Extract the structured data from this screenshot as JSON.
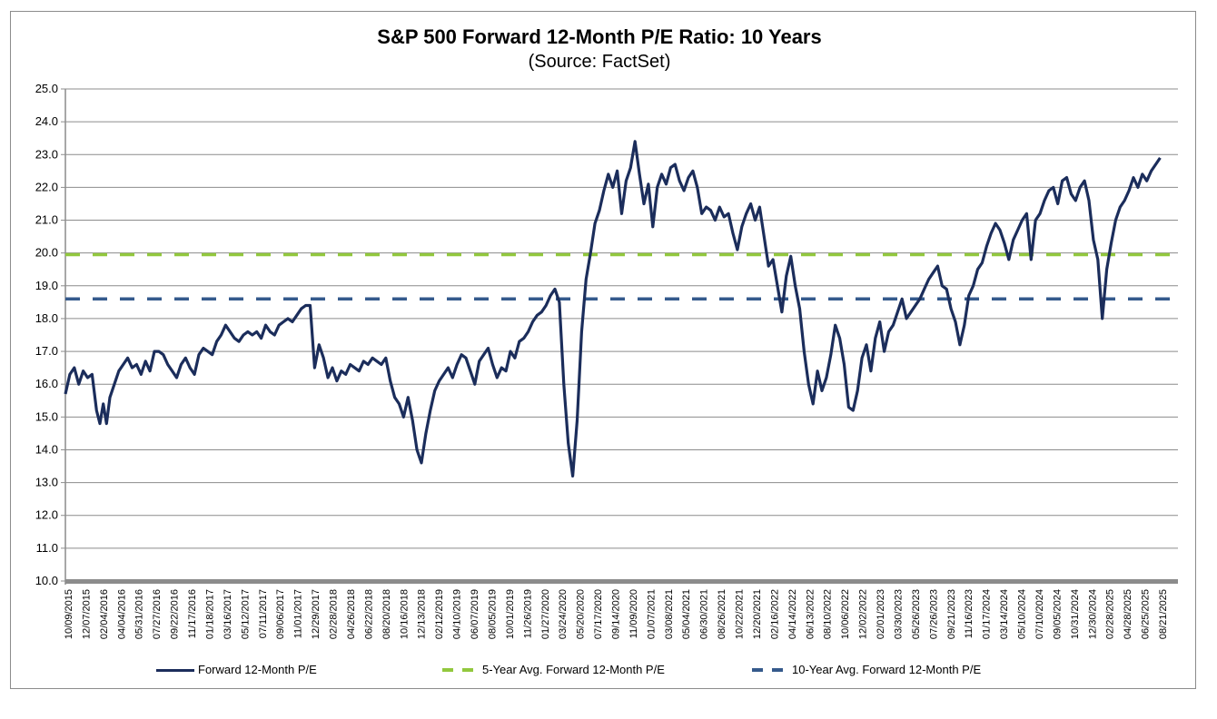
{
  "chart_data": {
    "type": "line",
    "title": "S&P 500 Forward 12-Month P/E Ratio: 10 Years",
    "subtitle": "(Source: FactSet)",
    "xlabel": "",
    "ylabel": "",
    "ylim": [
      10.0,
      25.0
    ],
    "yticks": [
      "10.0",
      "11.0",
      "12.0",
      "13.0",
      "14.0",
      "15.0",
      "16.0",
      "17.0",
      "18.0",
      "19.0",
      "20.0",
      "21.0",
      "22.0",
      "23.0",
      "24.0",
      "25.0"
    ],
    "grid": true,
    "legend_position": "bottom",
    "x_tick_labels": [
      "10/09/2015",
      "12/07/2015",
      "02/04/2016",
      "04/04/2016",
      "05/31/2016",
      "07/27/2016",
      "09/22/2016",
      "11/17/2016",
      "01/18/2017",
      "03/16/2017",
      "05/12/2017",
      "07/11/2017",
      "09/06/2017",
      "11/01/2017",
      "12/29/2017",
      "02/28/2018",
      "04/26/2018",
      "06/22/2018",
      "08/20/2018",
      "10/16/2018",
      "12/13/2018",
      "02/12/2019",
      "04/10/2019",
      "06/07/2019",
      "08/05/2019",
      "10/01/2019",
      "11/26/2019",
      "01/27/2020",
      "03/24/2020",
      "05/20/2020",
      "07/17/2020",
      "09/14/2020",
      "11/09/2020",
      "01/07/2021",
      "03/08/2021",
      "05/04/2021",
      "06/30/2021",
      "08/26/2021",
      "10/22/2021",
      "12/20/2021",
      "02/16/2022",
      "04/14/2022",
      "06/13/2022",
      "08/10/2022",
      "10/06/2022",
      "12/02/2022",
      "02/01/2023",
      "03/30/2023",
      "05/26/2023",
      "07/26/2023",
      "09/21/2023",
      "11/16/2023",
      "01/17/2024",
      "03/14/2024",
      "05/10/2024",
      "07/10/2024",
      "09/05/2024",
      "10/31/2024",
      "12/30/2024",
      "02/28/2025",
      "04/28/2025",
      "06/25/2025",
      "08/21/2025"
    ],
    "series": [
      {
        "name": "Forward 12-Month P/E",
        "color": "#1b2d5b",
        "style": "solid",
        "points_x_fraction": [
          0.0,
          0.004,
          0.008,
          0.012,
          0.016,
          0.02,
          0.024,
          0.028,
          0.031,
          0.034,
          0.037,
          0.04,
          0.044,
          0.048,
          0.052,
          0.056,
          0.06,
          0.064,
          0.068,
          0.072,
          0.076,
          0.08,
          0.084,
          0.088,
          0.092,
          0.096,
          0.1,
          0.104,
          0.108,
          0.112,
          0.116,
          0.12,
          0.124,
          0.128,
          0.132,
          0.136,
          0.14,
          0.144,
          0.148,
          0.152,
          0.156,
          0.16,
          0.164,
          0.168,
          0.172,
          0.176,
          0.18,
          0.184,
          0.188,
          0.192,
          0.196,
          0.2,
          0.204,
          0.208,
          0.212,
          0.216,
          0.22,
          0.224,
          0.228,
          0.232,
          0.236,
          0.24,
          0.244,
          0.248,
          0.252,
          0.256,
          0.26,
          0.264,
          0.268,
          0.272,
          0.276,
          0.28,
          0.284,
          0.288,
          0.292,
          0.296,
          0.3,
          0.304,
          0.308,
          0.312,
          0.316,
          0.32,
          0.324,
          0.328,
          0.332,
          0.336,
          0.34,
          0.344,
          0.348,
          0.352,
          0.356,
          0.36,
          0.364,
          0.368,
          0.372,
          0.376,
          0.38,
          0.384,
          0.388,
          0.392,
          0.396,
          0.4,
          0.404,
          0.408,
          0.412,
          0.416,
          0.42,
          0.424,
          0.428,
          0.432,
          0.436,
          0.44,
          0.444,
          0.448,
          0.452,
          0.456,
          0.46,
          0.464,
          0.468,
          0.472,
          0.476,
          0.48,
          0.484,
          0.488,
          0.492,
          0.496,
          0.5,
          0.504,
          0.508,
          0.512,
          0.516,
          0.52,
          0.524,
          0.528,
          0.532,
          0.536,
          0.54,
          0.544,
          0.548,
          0.552,
          0.556,
          0.56,
          0.564,
          0.568,
          0.572,
          0.576,
          0.58,
          0.584,
          0.588,
          0.592,
          0.596,
          0.6,
          0.604,
          0.608,
          0.612,
          0.616,
          0.62,
          0.624,
          0.628,
          0.632,
          0.636,
          0.64,
          0.644,
          0.648,
          0.652,
          0.656,
          0.66,
          0.664,
          0.668,
          0.672,
          0.676,
          0.68,
          0.684,
          0.688,
          0.692,
          0.696,
          0.7,
          0.704,
          0.708,
          0.712,
          0.716,
          0.72,
          0.724,
          0.728,
          0.732,
          0.736,
          0.74,
          0.744,
          0.748,
          0.752,
          0.756,
          0.76,
          0.764,
          0.768,
          0.772,
          0.776,
          0.78,
          0.784,
          0.788,
          0.792,
          0.796,
          0.8,
          0.804,
          0.808,
          0.812,
          0.816,
          0.82,
          0.824,
          0.828,
          0.832,
          0.836,
          0.84,
          0.844,
          0.848,
          0.852,
          0.856,
          0.86,
          0.864,
          0.868,
          0.872,
          0.876,
          0.88,
          0.884,
          0.888,
          0.892,
          0.896,
          0.9,
          0.904,
          0.908,
          0.912,
          0.916,
          0.92,
          0.924,
          0.928,
          0.932,
          0.936,
          0.94,
          0.944,
          0.948,
          0.952,
          0.956,
          0.96,
          0.964,
          0.968,
          0.972,
          0.976,
          0.98,
          0.984,
          0.988,
          0.992,
          0.996,
          1.0
        ],
        "values": [
          15.7,
          16.3,
          16.5,
          16.0,
          16.4,
          16.2,
          16.3,
          15.2,
          14.8,
          15.4,
          14.8,
          15.6,
          16.0,
          16.4,
          16.6,
          16.8,
          16.5,
          16.6,
          16.3,
          16.7,
          16.4,
          17.0,
          17.0,
          16.9,
          16.6,
          16.4,
          16.2,
          16.6,
          16.8,
          16.5,
          16.3,
          16.9,
          17.1,
          17.0,
          16.9,
          17.3,
          17.5,
          17.8,
          17.6,
          17.4,
          17.3,
          17.5,
          17.6,
          17.5,
          17.6,
          17.4,
          17.8,
          17.6,
          17.5,
          17.8,
          17.9,
          18.0,
          17.9,
          18.1,
          18.3,
          18.4,
          18.4,
          16.5,
          17.2,
          16.8,
          16.2,
          16.5,
          16.1,
          16.4,
          16.3,
          16.6,
          16.5,
          16.4,
          16.7,
          16.6,
          16.8,
          16.7,
          16.6,
          16.8,
          16.1,
          15.6,
          15.4,
          15.0,
          15.6,
          14.9,
          14.0,
          13.6,
          14.5,
          15.2,
          15.8,
          16.1,
          16.3,
          16.5,
          16.2,
          16.6,
          16.9,
          16.8,
          16.4,
          16.0,
          16.7,
          16.9,
          17.1,
          16.6,
          16.2,
          16.5,
          16.4,
          17.0,
          16.8,
          17.3,
          17.4,
          17.6,
          17.9,
          18.1,
          18.2,
          18.4,
          18.7,
          18.9,
          18.5,
          16.0,
          14.2,
          13.2,
          14.9,
          17.6,
          19.2,
          20.0,
          20.9,
          21.3,
          21.9,
          22.4,
          22.0,
          22.5,
          21.2,
          22.2,
          22.6,
          23.4,
          22.4,
          21.5,
          22.1,
          20.8,
          22.0,
          22.4,
          22.1,
          22.6,
          22.7,
          22.2,
          21.9,
          22.3,
          22.5,
          22.0,
          21.2,
          21.4,
          21.3,
          21.0,
          21.4,
          21.1,
          21.2,
          20.6,
          20.1,
          20.8,
          21.2,
          21.5,
          21.0,
          21.4,
          20.5,
          19.6,
          19.8,
          19.0,
          18.2,
          19.3,
          19.9,
          19.0,
          18.3,
          17.0,
          16.0,
          15.4,
          16.4,
          15.8,
          16.2,
          16.9,
          17.8,
          17.4,
          16.6,
          15.3,
          15.2,
          15.8,
          16.8,
          17.2,
          16.4,
          17.4,
          17.9,
          17.0,
          17.6,
          17.8,
          18.2,
          18.6,
          18.0,
          18.2,
          18.4,
          18.6,
          18.9,
          19.2,
          19.4,
          19.6,
          19.0,
          18.9,
          18.3,
          17.9,
          17.2,
          17.8,
          18.7,
          19.0,
          19.5,
          19.7,
          20.2,
          20.6,
          20.9,
          20.7,
          20.3,
          19.8,
          20.4,
          20.7,
          21.0,
          21.2,
          19.8,
          21.0,
          21.2,
          21.6,
          21.9,
          22.0,
          21.5,
          22.2,
          22.3,
          21.8,
          21.6,
          22.0,
          22.2,
          21.6,
          20.4,
          19.8,
          18.0,
          19.5,
          20.3,
          21.0,
          21.4,
          21.6,
          21.9,
          22.3,
          22.0,
          22.4,
          22.2,
          22.5,
          22.7,
          22.9
        ]
      },
      {
        "name": "5-Year Avg. Forward 12-Month P/E",
        "color": "#92c83e",
        "style": "dashed",
        "value": 19.95
      },
      {
        "name": "10-Year Avg. Forward 12-Month P/E",
        "color": "#355a8c",
        "style": "dashed",
        "value": 18.6
      }
    ]
  }
}
